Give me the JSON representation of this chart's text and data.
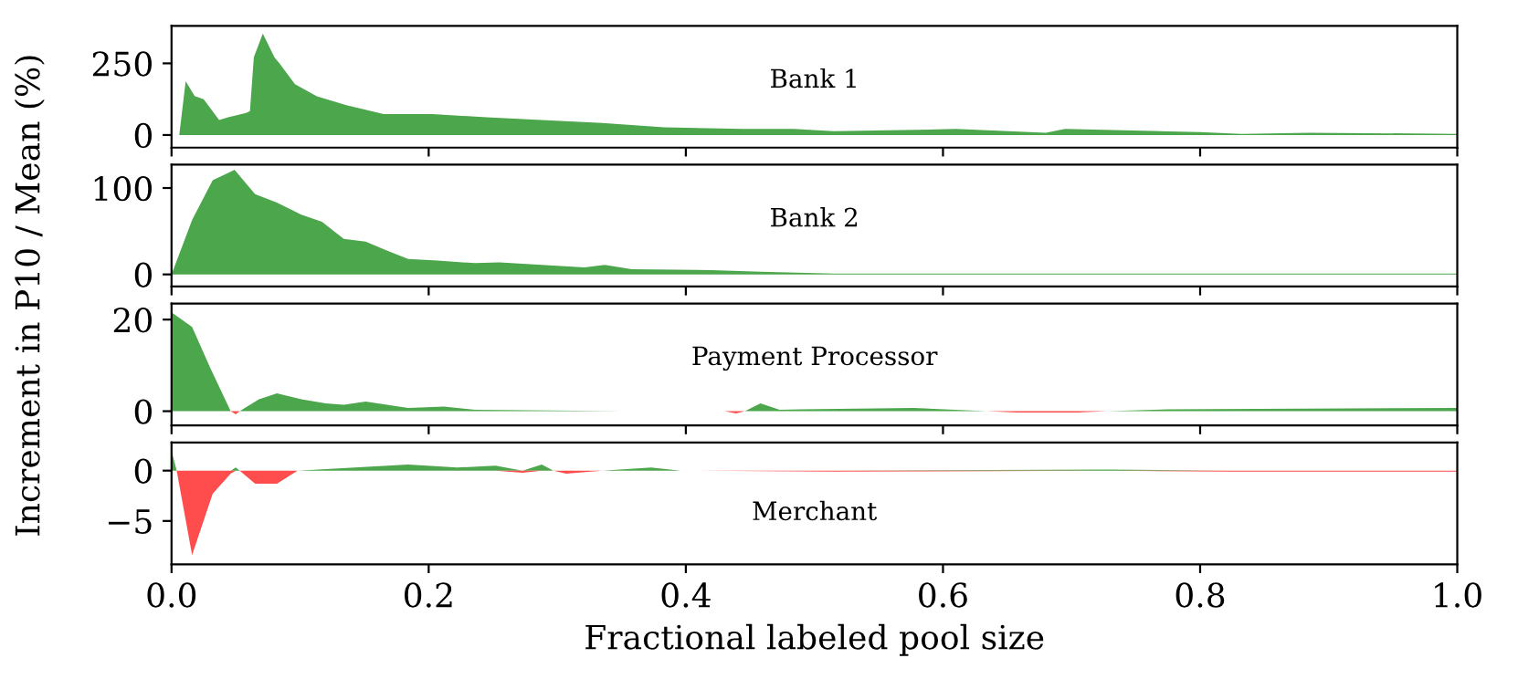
{
  "chart_data": [
    {
      "type": "area",
      "title": "Bank 1",
      "ylabel": "Increment in P10 / Mean (%)",
      "xlim": [
        0,
        1
      ],
      "xticks": [
        {
          "value": 0,
          "label": null
        },
        {
          "value": 0.2,
          "label": null
        },
        {
          "value": 0.4,
          "label": null
        },
        {
          "value": 0.6,
          "label": null
        },
        {
          "value": 0.8,
          "label": null
        },
        {
          "value": 1,
          "label": null
        }
      ],
      "ylim": [
        -44,
        381
      ],
      "yticks": [
        0,
        250
      ],
      "tick_labels": "y",
      "grid": false,
      "legend": false,
      "series": [
        {
          "color": "#4ca64c",
          "x": [
            0.006,
            0.011,
            0.018,
            0.025,
            0.037,
            0.044,
            0.058,
            0.061,
            0.064,
            0.071,
            0.08,
            0.084,
            0.096,
            0.113,
            0.136,
            0.165,
            0.203,
            0.245,
            0.288,
            0.335,
            0.383,
            0.444,
            0.484,
            0.515,
            0.61,
            0.68,
            0.695,
            0.8,
            0.832,
            0.885,
            1.0
          ],
          "values": [
            0,
            188,
            136,
            125,
            52,
            62,
            77,
            83,
            271,
            354,
            271,
            250,
            177,
            135,
            104,
            73,
            73,
            62,
            52,
            42,
            27,
            21,
            21,
            13,
            21,
            8,
            21,
            10,
            4,
            8,
            4
          ]
        }
      ]
    },
    {
      "type": "area",
      "title": "Bank 2",
      "xlim": [
        0,
        1
      ],
      "xticks": [
        {
          "value": 0,
          "label": null
        },
        {
          "value": 0.2,
          "label": null
        },
        {
          "value": 0.4,
          "label": null
        },
        {
          "value": 0.6,
          "label": null
        },
        {
          "value": 0.8,
          "label": null
        },
        {
          "value": 1,
          "label": null
        }
      ],
      "ylim": [
        -14,
        127
      ],
      "yticks": [
        0,
        100
      ],
      "tick_labels": "y",
      "grid": false,
      "legend": false,
      "series": [
        {
          "color": "#4ca64c",
          "x": [
            0.0,
            0.016,
            0.032,
            0.049,
            0.065,
            0.082,
            0.101,
            0.117,
            0.134,
            0.151,
            0.167,
            0.184,
            0.207,
            0.236,
            0.255,
            0.288,
            0.321,
            0.337,
            0.358,
            0.42,
            0.458,
            0.515,
            0.7,
            1.0
          ],
          "values": [
            0,
            63,
            109,
            121,
            93,
            83,
            69,
            61,
            41,
            38,
            28,
            18,
            16,
            13,
            14,
            11,
            8,
            11,
            6,
            5,
            3,
            1,
            1,
            1
          ]
        }
      ]
    },
    {
      "type": "area",
      "title": "Payment Processor",
      "xlim": [
        0,
        1
      ],
      "xticks": [
        {
          "value": 0,
          "label": null
        },
        {
          "value": 0.2,
          "label": null
        },
        {
          "value": 0.4,
          "label": null
        },
        {
          "value": 0.6,
          "label": null
        },
        {
          "value": 0.8,
          "label": null
        },
        {
          "value": 1,
          "label": null
        }
      ],
      "ylim": [
        -3.1,
        23.5
      ],
      "yticks": [
        0,
        20
      ],
      "tick_labels": "y",
      "grid": false,
      "legend": false,
      "series": [
        {
          "color": "#4ca64c",
          "x": [
            0.0,
            0.016,
            0.03,
            0.046,
            0.05,
            0.053,
            0.068,
            0.082,
            0.101,
            0.12,
            0.134,
            0.151,
            0.184,
            0.212,
            0.236,
            0.35,
            0.43,
            0.439,
            0.446,
            0.458,
            0.473,
            0.49,
            0.577,
            0.634,
            0.657,
            0.705,
            0.728,
            0.776,
            1.0
          ],
          "values": [
            21.6,
            18.4,
            9.5,
            0,
            0,
            0,
            2.6,
            3.9,
            2.6,
            1.7,
            1.4,
            2.1,
            0.7,
            1.0,
            0.3,
            0,
            0,
            0,
            0,
            1.7,
            0.3,
            0.4,
            0.7,
            0,
            0,
            0,
            0,
            0.4,
            0.7
          ]
        },
        {
          "color": "#ff4c4c",
          "x": [
            0.0,
            0.016,
            0.03,
            0.046,
            0.05,
            0.053,
            0.068,
            0.082,
            0.101,
            0.12,
            0.134,
            0.151,
            0.184,
            0.212,
            0.236,
            0.35,
            0.43,
            0.439,
            0.446,
            0.458,
            0.473,
            0.49,
            0.577,
            0.634,
            0.657,
            0.705,
            0.728,
            0.776,
            1.0
          ],
          "values": [
            0,
            0,
            0,
            0,
            -0.7,
            0,
            0,
            0,
            0,
            0,
            0,
            0,
            0,
            0,
            0,
            0,
            0,
            -0.5,
            0,
            0,
            0,
            0,
            0,
            0,
            -0.3,
            -0.3,
            0,
            0,
            0
          ]
        }
      ]
    },
    {
      "type": "area",
      "title": "Merchant",
      "xlabel": "Fractional labeled pool size",
      "xlim": [
        0,
        1
      ],
      "ylim": [
        -9.3,
        2.8
      ],
      "xticks": [
        {
          "value": 0,
          "label": "0.0"
        },
        0.2,
        0.4,
        0.6,
        0.8,
        {
          "value": 1,
          "label": "1.0"
        }
      ],
      "yticks": [
        {
          "value": -5,
          "label": "−5"
        },
        0
      ],
      "grid": false,
      "legend": false,
      "series": [
        {
          "color": "#4ca64c",
          "x": [
            0.0,
            0.004,
            0.016,
            0.032,
            0.046,
            0.05,
            0.053,
            0.065,
            0.082,
            0.098,
            0.184,
            0.222,
            0.252,
            0.273,
            0.288,
            0.297,
            0.307,
            0.335,
            0.373,
            0.396,
            0.515,
            0.728,
            0.82,
            1.0
          ],
          "values": [
            2.0,
            0,
            0,
            0,
            0,
            0.3,
            0,
            0,
            0,
            0,
            0.6,
            0.3,
            0.5,
            0,
            0.6,
            0,
            0,
            0,
            0.3,
            0,
            0,
            0.1,
            0,
            0
          ]
        },
        {
          "color": "#ff4c4c",
          "x": [
            0.0,
            0.004,
            0.016,
            0.032,
            0.046,
            0.05,
            0.053,
            0.065,
            0.082,
            0.098,
            0.184,
            0.222,
            0.252,
            0.273,
            0.288,
            0.297,
            0.307,
            0.335,
            0.373,
            0.396,
            0.515,
            0.728,
            0.82,
            1.0
          ],
          "values": [
            0,
            0,
            -8.4,
            -2.3,
            -0.3,
            0,
            0,
            -1.3,
            -1.3,
            0,
            0,
            0,
            0,
            -0.2,
            0,
            0,
            -0.3,
            0,
            0,
            0,
            -0.1,
            0,
            -0.1,
            -0.1
          ]
        }
      ]
    }
  ]
}
